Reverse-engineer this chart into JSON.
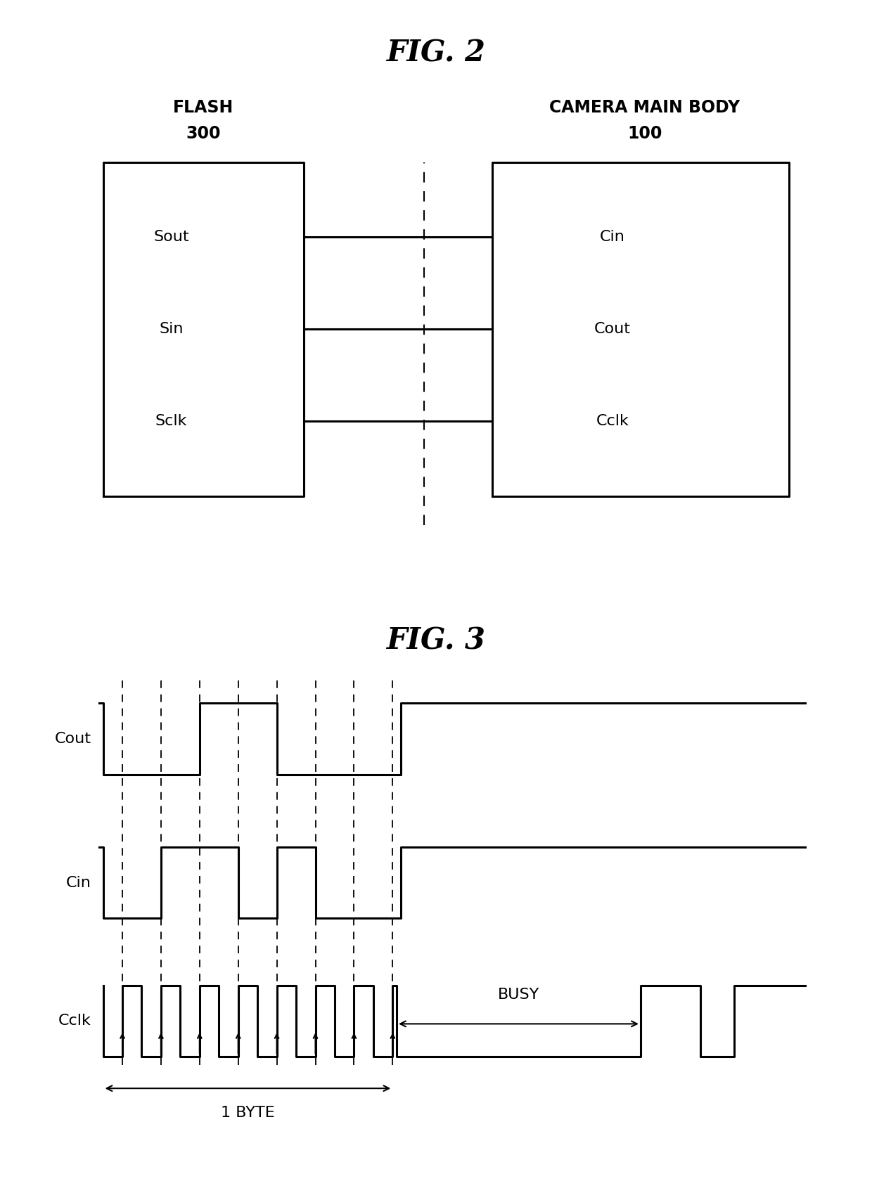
{
  "fig2_title": "FIG. 2",
  "fig3_title": "FIG. 3",
  "flash_label": "FLASH",
  "flash_num": "300",
  "camera_label": "CAMERA MAIN BODY",
  "camera_num": "100",
  "flash_pins": [
    "Sout",
    "Sin",
    "Sclk"
  ],
  "camera_pins": [
    "Cin",
    "Cout",
    "Cclk"
  ],
  "cout_label": "Cout",
  "cin_label": "Cin",
  "cclk_label": "Cclk",
  "busy_label": "BUSY",
  "byte_label": "1 BYTE",
  "bg_color": "#ffffff",
  "line_color": "#000000"
}
